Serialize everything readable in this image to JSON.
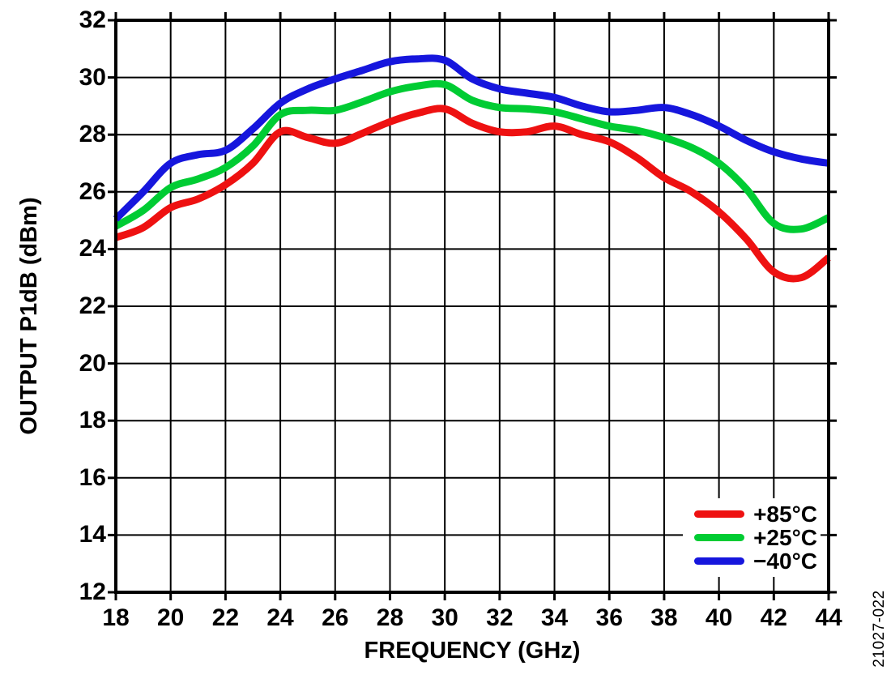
{
  "figure": {
    "watermark": "21027-022"
  },
  "chart_data": {
    "type": "line",
    "title": "",
    "xlabel": "FREQUENCY (GHz)",
    "ylabel": "OUTPUT P1dB (dBm)",
    "xlim": [
      18,
      44
    ],
    "ylim": [
      12,
      32
    ],
    "x_ticks": [
      18,
      20,
      22,
      24,
      26,
      28,
      30,
      32,
      34,
      36,
      38,
      40,
      42,
      44
    ],
    "y_ticks": [
      12,
      14,
      16,
      18,
      20,
      22,
      24,
      26,
      28,
      30,
      32
    ],
    "grid": true,
    "legend_position": "bottom-right",
    "x": [
      18,
      19,
      20,
      21,
      22,
      23,
      24,
      25,
      26,
      27,
      28,
      29,
      30,
      31,
      32,
      33,
      34,
      35,
      36,
      37,
      38,
      39,
      40,
      41,
      42,
      43,
      44
    ],
    "series": [
      {
        "name": "+85°C",
        "color": "#ee1111",
        "values": [
          24.4,
          24.75,
          25.45,
          25.75,
          26.25,
          27.0,
          28.1,
          27.9,
          27.7,
          28.05,
          28.45,
          28.75,
          28.9,
          28.4,
          28.1,
          28.1,
          28.3,
          28.0,
          27.75,
          27.2,
          26.5,
          26.0,
          25.3,
          24.35,
          23.2,
          23.0,
          23.7
        ]
      },
      {
        "name": "+25°C",
        "color": "#00cc33",
        "values": [
          24.8,
          25.35,
          26.15,
          26.45,
          26.85,
          27.6,
          28.7,
          28.85,
          28.85,
          29.15,
          29.5,
          29.7,
          29.75,
          29.2,
          28.95,
          28.9,
          28.8,
          28.55,
          28.3,
          28.15,
          27.9,
          27.55,
          27.0,
          26.1,
          24.9,
          24.7,
          25.1
        ]
      },
      {
        "name": "−40°C",
        "color": "#1616dd",
        "values": [
          25.05,
          26.0,
          27.0,
          27.3,
          27.45,
          28.2,
          29.1,
          29.6,
          29.95,
          30.25,
          30.55,
          30.65,
          30.6,
          29.95,
          29.6,
          29.45,
          29.3,
          29.0,
          28.8,
          28.85,
          28.95,
          28.7,
          28.3,
          27.8,
          27.4,
          27.15,
          27.0
        ]
      }
    ]
  }
}
